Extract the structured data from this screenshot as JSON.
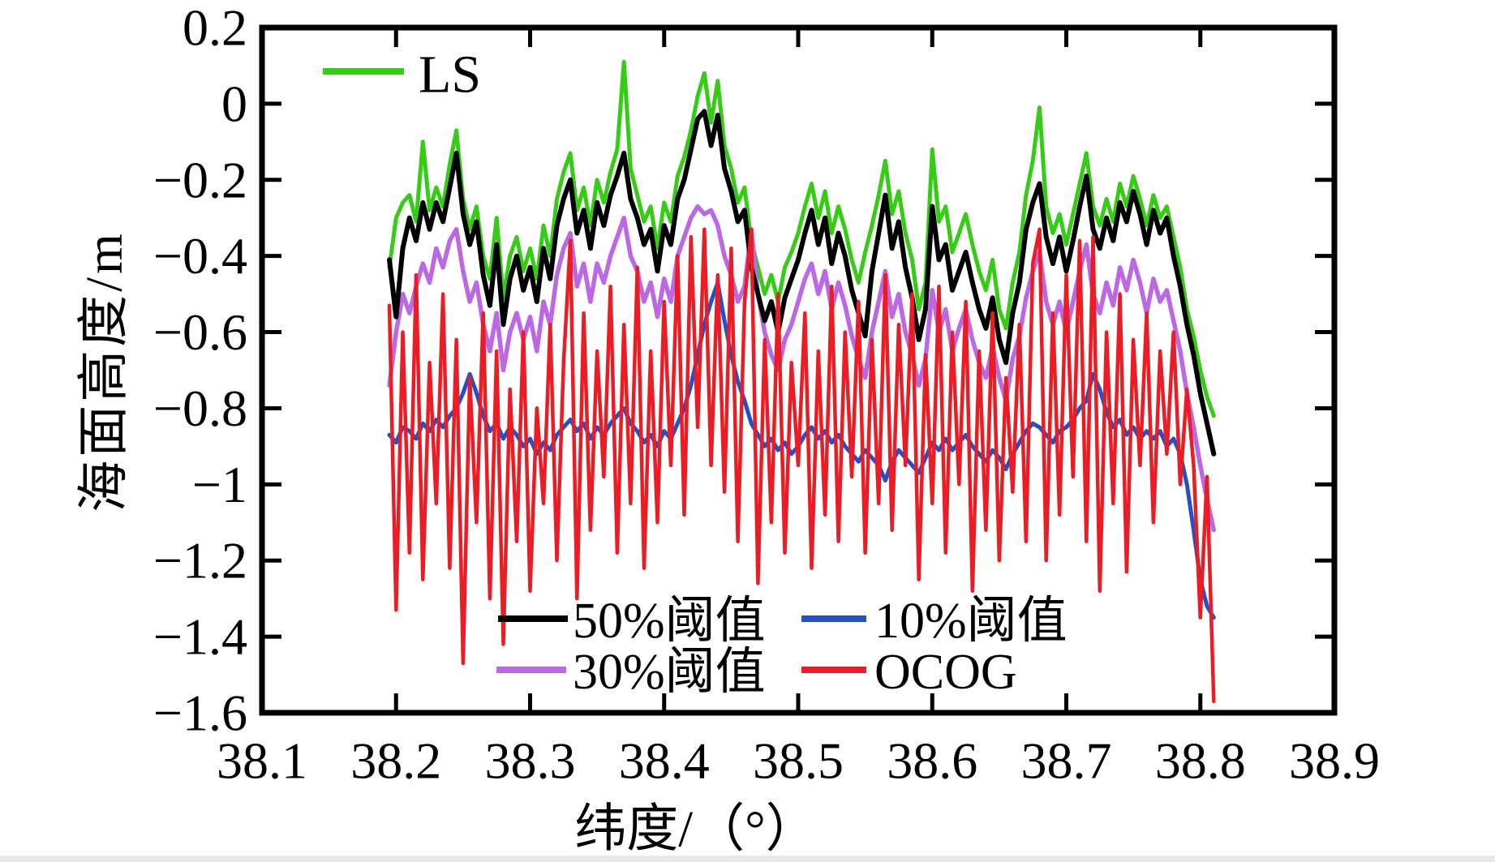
{
  "figure": {
    "background": "#ffffff",
    "frame_color": "#000000"
  },
  "axes": {
    "x_label": "纬度/（°）",
    "y_label": "海面高度/m",
    "x_tick_labels": [
      "38.1",
      "38.2",
      "38.3",
      "38.4",
      "38.5",
      "38.6",
      "38.7",
      "38.8",
      "38.9"
    ],
    "x_tick_values": [
      38.1,
      38.2,
      38.3,
      38.4,
      38.5,
      38.6,
      38.7,
      38.8,
      38.9
    ],
    "y_tick_labels": [
      "0.2",
      "0",
      "−0.2",
      "−0.4",
      "−0.6",
      "−0.8",
      "−1",
      "−1.2",
      "−1.4",
      "−1.6"
    ],
    "y_tick_values": [
      0.2,
      0,
      -0.2,
      -0.4,
      -0.6,
      -0.8,
      -1,
      -1.2,
      -1.4,
      -1.6
    ]
  },
  "legend": {
    "items": [
      {
        "label": "LS",
        "color": "#35cd14"
      },
      {
        "label": "50%阈值",
        "color": "#000000"
      },
      {
        "label": "30%阈值",
        "color": "#bc68e4"
      },
      {
        "label": "10%阈值",
        "color": "#2150c8"
      },
      {
        "label": "OCOG",
        "color": "#ec1c24"
      }
    ]
  },
  "chart_data": {
    "type": "line",
    "title": "",
    "xlabel": "纬度/（°）",
    "ylabel": "海面高度/m",
    "xlim": [
      38.1,
      38.9
    ],
    "ylim": [
      -1.6,
      0.2
    ],
    "grid": false,
    "legend_position": "top-left and bottom-center inside plot",
    "x": [
      38.195,
      38.2,
      38.205,
      38.21,
      38.215,
      38.22,
      38.225,
      38.23,
      38.235,
      38.24,
      38.245,
      38.25,
      38.255,
      38.26,
      38.265,
      38.27,
      38.275,
      38.28,
      38.285,
      38.29,
      38.295,
      38.3,
      38.305,
      38.31,
      38.315,
      38.32,
      38.325,
      38.33,
      38.335,
      38.34,
      38.345,
      38.35,
      38.355,
      38.36,
      38.365,
      38.37,
      38.375,
      38.38,
      38.385,
      38.39,
      38.395,
      38.4,
      38.405,
      38.41,
      38.415,
      38.42,
      38.425,
      38.43,
      38.435,
      38.44,
      38.445,
      38.45,
      38.455,
      38.46,
      38.465,
      38.47,
      38.475,
      38.48,
      38.485,
      38.49,
      38.495,
      38.5,
      38.505,
      38.51,
      38.515,
      38.52,
      38.525,
      38.53,
      38.535,
      38.54,
      38.545,
      38.55,
      38.555,
      38.56,
      38.565,
      38.57,
      38.575,
      38.58,
      38.585,
      38.59,
      38.595,
      38.6,
      38.605,
      38.61,
      38.615,
      38.62,
      38.625,
      38.63,
      38.635,
      38.64,
      38.645,
      38.65,
      38.655,
      38.66,
      38.665,
      38.67,
      38.675,
      38.68,
      38.685,
      38.69,
      38.695,
      38.7,
      38.705,
      38.71,
      38.715,
      38.72,
      38.725,
      38.73,
      38.735,
      38.74,
      38.745,
      38.75,
      38.755,
      38.76,
      38.765,
      38.77,
      38.775,
      38.78,
      38.785,
      38.79,
      38.795,
      38.8,
      38.805,
      38.81
    ],
    "series": [
      {
        "name": "LS",
        "color": "#35cd14",
        "width": 5,
        "values": [
          -0.43,
          -0.3,
          -0.26,
          -0.24,
          -0.31,
          -0.1,
          -0.28,
          -0.22,
          -0.27,
          -0.16,
          -0.07,
          -0.25,
          -0.33,
          -0.27,
          -0.4,
          -0.46,
          -0.3,
          -0.51,
          -0.4,
          -0.35,
          -0.44,
          -0.38,
          -0.46,
          -0.32,
          -0.4,
          -0.25,
          -0.18,
          -0.13,
          -0.28,
          -0.22,
          -0.32,
          -0.2,
          -0.26,
          -0.18,
          -0.12,
          0.11,
          -0.17,
          -0.24,
          -0.31,
          -0.27,
          -0.38,
          -0.26,
          -0.31,
          -0.19,
          -0.14,
          -0.07,
          0.02,
          0.08,
          -0.05,
          0.06,
          -0.11,
          -0.17,
          -0.26,
          -0.22,
          -0.36,
          -0.43,
          -0.5,
          -0.45,
          -0.52,
          -0.43,
          -0.39,
          -0.34,
          -0.27,
          -0.21,
          -0.3,
          -0.23,
          -0.34,
          -0.27,
          -0.33,
          -0.41,
          -0.47,
          -0.39,
          -0.32,
          -0.24,
          -0.15,
          -0.29,
          -0.23,
          -0.34,
          -0.41,
          -0.54,
          -0.47,
          -0.12,
          -0.31,
          -0.27,
          -0.39,
          -0.34,
          -0.29,
          -0.37,
          -0.44,
          -0.49,
          -0.41,
          -0.54,
          -0.59,
          -0.47,
          -0.39,
          -0.24,
          -0.15,
          -0.01,
          -0.27,
          -0.34,
          -0.29,
          -0.37,
          -0.29,
          -0.21,
          -0.13,
          -0.27,
          -0.32,
          -0.25,
          -0.31,
          -0.21,
          -0.27,
          -0.19,
          -0.25,
          -0.32,
          -0.24,
          -0.3,
          -0.27,
          -0.35,
          -0.43,
          -0.54,
          -0.61,
          -0.7,
          -0.77,
          -0.82
        ]
      },
      {
        "name": "30%阈值",
        "color": "#bc68e4",
        "width": 5.5,
        "values": [
          -0.74,
          -0.6,
          -0.5,
          -0.55,
          -0.48,
          -0.42,
          -0.47,
          -0.38,
          -0.43,
          -0.36,
          -0.33,
          -0.44,
          -0.52,
          -0.47,
          -0.58,
          -0.65,
          -0.55,
          -0.7,
          -0.6,
          -0.55,
          -0.62,
          -0.56,
          -0.65,
          -0.52,
          -0.58,
          -0.45,
          -0.38,
          -0.34,
          -0.48,
          -0.42,
          -0.52,
          -0.42,
          -0.47,
          -0.4,
          -0.35,
          -0.3,
          -0.4,
          -0.44,
          -0.52,
          -0.47,
          -0.56,
          -0.46,
          -0.52,
          -0.4,
          -0.35,
          -0.3,
          -0.27,
          -0.29,
          -0.28,
          -0.32,
          -0.4,
          -0.45,
          -0.52,
          -0.48,
          -0.33,
          -0.5,
          -0.6,
          -0.66,
          -0.7,
          -0.62,
          -0.58,
          -0.52,
          -0.46,
          -0.42,
          -0.5,
          -0.44,
          -0.54,
          -0.47,
          -0.53,
          -0.61,
          -0.67,
          -0.72,
          -0.6,
          -0.52,
          -0.44,
          -0.56,
          -0.5,
          -0.6,
          -0.66,
          -0.74,
          -0.67,
          -0.49,
          -0.6,
          -0.54,
          -0.65,
          -0.59,
          -0.54,
          -0.62,
          -0.68,
          -0.72,
          -0.64,
          -0.72,
          -0.78,
          -0.67,
          -0.61,
          -0.51,
          -0.44,
          -0.39,
          -0.52,
          -0.58,
          -0.52,
          -0.6,
          -0.52,
          -0.44,
          -0.37,
          -0.5,
          -0.55,
          -0.47,
          -0.53,
          -0.43,
          -0.49,
          -0.41,
          -0.47,
          -0.55,
          -0.46,
          -0.52,
          -0.49,
          -0.57,
          -0.65,
          -0.76,
          -0.85,
          -0.95,
          -1.04,
          -1.12
        ]
      },
      {
        "name": "50%阈值",
        "color": "#000000",
        "width": 6,
        "values": [
          -0.41,
          -0.56,
          -0.38,
          -0.3,
          -0.36,
          -0.26,
          -0.33,
          -0.26,
          -0.31,
          -0.22,
          -0.13,
          -0.29,
          -0.37,
          -0.31,
          -0.45,
          -0.53,
          -0.37,
          -0.58,
          -0.46,
          -0.4,
          -0.49,
          -0.43,
          -0.52,
          -0.38,
          -0.46,
          -0.32,
          -0.25,
          -0.2,
          -0.34,
          -0.28,
          -0.38,
          -0.26,
          -0.32,
          -0.24,
          -0.19,
          -0.13,
          -0.25,
          -0.3,
          -0.37,
          -0.33,
          -0.44,
          -0.32,
          -0.37,
          -0.25,
          -0.2,
          -0.12,
          -0.04,
          -0.02,
          -0.11,
          -0.03,
          -0.17,
          -0.23,
          -0.31,
          -0.28,
          -0.43,
          -0.5,
          -0.57,
          -0.52,
          -0.6,
          -0.51,
          -0.46,
          -0.41,
          -0.34,
          -0.28,
          -0.37,
          -0.3,
          -0.42,
          -0.34,
          -0.4,
          -0.49,
          -0.55,
          -0.61,
          -0.44,
          -0.34,
          -0.24,
          -0.38,
          -0.31,
          -0.43,
          -0.51,
          -0.62,
          -0.54,
          -0.27,
          -0.41,
          -0.37,
          -0.49,
          -0.44,
          -0.39,
          -0.47,
          -0.54,
          -0.59,
          -0.51,
          -0.62,
          -0.68,
          -0.55,
          -0.47,
          -0.33,
          -0.26,
          -0.21,
          -0.35,
          -0.42,
          -0.35,
          -0.44,
          -0.36,
          -0.27,
          -0.19,
          -0.33,
          -0.38,
          -0.3,
          -0.36,
          -0.26,
          -0.31,
          -0.23,
          -0.29,
          -0.37,
          -0.28,
          -0.34,
          -0.3,
          -0.4,
          -0.48,
          -0.58,
          -0.66,
          -0.76,
          -0.84,
          -0.92
        ]
      },
      {
        "name": "10%阈值",
        "color": "#2150c8",
        "width": 5,
        "values": [
          -0.87,
          -0.89,
          -0.85,
          -0.86,
          -0.88,
          -0.84,
          -0.86,
          -0.83,
          -0.85,
          -0.82,
          -0.8,
          -0.76,
          -0.71,
          -0.76,
          -0.82,
          -0.86,
          -0.84,
          -0.88,
          -0.85,
          -0.87,
          -0.9,
          -0.88,
          -0.92,
          -0.89,
          -0.91,
          -0.87,
          -0.85,
          -0.83,
          -0.86,
          -0.84,
          -0.88,
          -0.85,
          -0.87,
          -0.84,
          -0.82,
          -0.8,
          -0.84,
          -0.86,
          -0.89,
          -0.87,
          -0.9,
          -0.86,
          -0.88,
          -0.84,
          -0.8,
          -0.74,
          -0.66,
          -0.58,
          -0.52,
          -0.47,
          -0.57,
          -0.66,
          -0.73,
          -0.78,
          -0.84,
          -0.87,
          -0.9,
          -0.88,
          -0.91,
          -0.89,
          -0.92,
          -0.9,
          -0.87,
          -0.85,
          -0.88,
          -0.86,
          -0.89,
          -0.87,
          -0.9,
          -0.92,
          -0.94,
          -0.91,
          -0.93,
          -0.95,
          -0.99,
          -0.94,
          -0.91,
          -0.93,
          -0.95,
          -0.97,
          -0.93,
          -0.89,
          -0.91,
          -0.88,
          -0.91,
          -0.89,
          -0.87,
          -0.9,
          -0.92,
          -0.94,
          -0.91,
          -0.93,
          -0.96,
          -0.92,
          -0.89,
          -0.86,
          -0.84,
          -0.85,
          -0.87,
          -0.89,
          -0.86,
          -0.85,
          -0.83,
          -0.8,
          -0.78,
          -0.71,
          -0.75,
          -0.81,
          -0.85,
          -0.83,
          -0.87,
          -0.85,
          -0.88,
          -0.86,
          -0.88,
          -0.86,
          -0.9,
          -0.88,
          -0.92,
          -1.0,
          -1.12,
          -1.25,
          -1.32,
          -1.35
        ]
      },
      {
        "name": "OCOG",
        "color": "#ec1c24",
        "width": 4.5,
        "values": [
          -0.53,
          -1.33,
          -0.6,
          -1.18,
          -0.45,
          -1.25,
          -0.68,
          -1.05,
          -0.5,
          -1.22,
          -0.62,
          -1.47,
          -0.72,
          -1.1,
          -0.55,
          -1.3,
          -0.65,
          -1.42,
          -0.75,
          -1.15,
          -0.6,
          -1.28,
          -0.8,
          -1.05,
          -0.58,
          -1.2,
          -0.68,
          -0.36,
          -1.3,
          -0.55,
          -1.12,
          -0.65,
          -0.98,
          -0.48,
          -1.18,
          -0.58,
          -1.05,
          -0.43,
          -1.22,
          -0.65,
          -1.1,
          -0.52,
          -0.95,
          -0.4,
          -1.08,
          -0.35,
          -0.85,
          -0.33,
          -0.95,
          -0.45,
          -1.02,
          -0.38,
          -1.15,
          -0.52,
          -0.33,
          -1.26,
          -0.62,
          -1.1,
          -0.5,
          -1.18,
          -0.68,
          -0.95,
          -0.55,
          -1.22,
          -0.65,
          -1.08,
          -0.48,
          -1.15,
          -0.6,
          -0.98,
          -0.52,
          -1.18,
          -0.62,
          -1.05,
          -0.45,
          -1.12,
          -0.58,
          -0.95,
          -0.5,
          -1.25,
          -0.66,
          -1.05,
          -0.48,
          -1.18,
          -0.6,
          -1.0,
          -0.52,
          -1.28,
          -0.65,
          -1.12,
          -0.55,
          -1.2,
          -0.72,
          -1.02,
          -0.58,
          -1.15,
          -0.42,
          -0.33,
          -1.2,
          -0.55,
          -1.08,
          -0.45,
          -0.98,
          -0.36,
          -1.15,
          -0.35,
          -1.28,
          -0.6,
          -1.05,
          -0.5,
          -1.23,
          -0.62,
          -0.95,
          -0.55,
          -1.1,
          -0.65,
          -0.92,
          -0.6,
          -1.0,
          -0.75,
          -0.95,
          -1.35,
          -0.98,
          -1.57
        ]
      }
    ]
  }
}
